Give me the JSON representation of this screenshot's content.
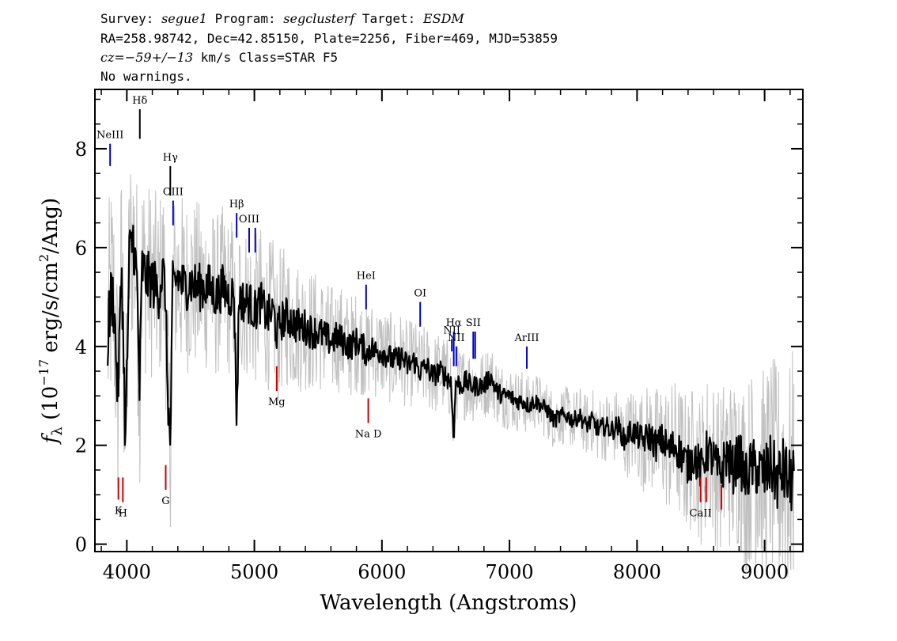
{
  "header": {
    "line1": {
      "survey_label": "Survey: ",
      "survey_value": "segue1",
      "program_label": " Program: ",
      "program_value": "segclusterf",
      "target_label": " Target: ",
      "target_value": "ESDM"
    },
    "line2": "RA=258.98742, Dec=42.85150, Plate=2256, Fiber=469, MJD=53859",
    "line3": {
      "cz_value": "cz=−59+/−13",
      "rest": " km/s Class=STAR F5"
    },
    "line4": "No warnings."
  },
  "chart_data": {
    "type": "line",
    "xlabel": "Wavelength (Angstroms)",
    "ylabel_parts": {
      "prefix": "f",
      "sub": "λ",
      "mid": " (10",
      "exp": "−17",
      "unit": " erg/s/cm",
      "exp2": "2",
      "end": "/Ang)"
    },
    "xlim": [
      3750,
      9300
    ],
    "ylim": [
      -0.15,
      9.2
    ],
    "x_ticks": [
      4000,
      5000,
      6000,
      7000,
      8000,
      9000
    ],
    "x_tick_labels": [
      "4000",
      "5000",
      "6000",
      "7000",
      "8000",
      "9000"
    ],
    "x_minor_step": 200,
    "y_ticks": [
      0,
      2,
      4,
      6,
      8
    ],
    "y_tick_labels": [
      "0",
      "2",
      "4",
      "6",
      "8"
    ],
    "y_minor_step": 0.5,
    "grid": false,
    "series": [
      {
        "role": "flux",
        "color": "#000000",
        "x": [
          3850,
          3880,
          3900,
          3930,
          3960,
          3990,
          4020,
          4050,
          4080,
          4100,
          4120,
          4150,
          4200,
          4250,
          4280,
          4300,
          4320,
          4340,
          4360,
          4400,
          4450,
          4500,
          4550,
          4600,
          4650,
          4700,
          4750,
          4800,
          4840,
          4862,
          4880,
          4920,
          4960,
          5000,
          5050,
          5100,
          5150,
          5180,
          5200,
          5250,
          5300,
          5350,
          5400,
          5450,
          5500,
          5550,
          5600,
          5650,
          5700,
          5750,
          5800,
          5850,
          5890,
          5900,
          5950,
          6000,
          6050,
          6100,
          6150,
          6200,
          6250,
          6300,
          6350,
          6400,
          6450,
          6500,
          6540,
          6563,
          6580,
          6620,
          6660,
          6700,
          6750,
          6800,
          6850,
          6900,
          6950,
          7000,
          7050,
          7100,
          7150,
          7200,
          7250,
          7300,
          7350,
          7400,
          7450,
          7500,
          7550,
          7600,
          7650,
          7700,
          7750,
          7800,
          7850,
          7900,
          7950,
          8000,
          8050,
          8100,
          8150,
          8200,
          8250,
          8300,
          8350,
          8400,
          8450,
          8500,
          8550,
          8600,
          8650,
          8700,
          8750,
          8800,
          8850,
          8900,
          8950,
          9000,
          9050,
          9100,
          9150,
          9200,
          9230
        ],
        "y": [
          4.2,
          5.1,
          4.8,
          3.0,
          5.6,
          2.0,
          5.8,
          6.2,
          5.3,
          3.1,
          5.6,
          5.4,
          5.3,
          5.1,
          5.5,
          5.2,
          3.2,
          1.9,
          5.2,
          5.4,
          5.2,
          5.3,
          5.2,
          5.2,
          5.2,
          5.0,
          5.2,
          5.0,
          5.1,
          2.5,
          5.0,
          4.9,
          4.9,
          4.7,
          4.9,
          4.6,
          4.7,
          4.2,
          4.5,
          4.6,
          4.5,
          4.4,
          4.4,
          4.3,
          4.3,
          4.2,
          4.1,
          4.2,
          4.1,
          4.0,
          4.1,
          4.0,
          3.8,
          4.0,
          3.9,
          3.9,
          3.8,
          3.7,
          3.8,
          3.6,
          3.7,
          3.5,
          3.6,
          3.4,
          3.5,
          3.4,
          3.3,
          2.2,
          3.3,
          3.2,
          3.3,
          3.2,
          3.2,
          3.2,
          3.4,
          3.1,
          3.0,
          3.0,
          2.9,
          2.9,
          2.8,
          2.9,
          2.8,
          2.7,
          2.5,
          2.6,
          2.6,
          2.5,
          2.6,
          2.4,
          2.5,
          2.3,
          2.4,
          2.3,
          2.4,
          2.1,
          2.3,
          2.2,
          2.1,
          2.2,
          2.0,
          2.1,
          1.9,
          2.0,
          1.8,
          1.6,
          1.8,
          1.5,
          1.9,
          1.7,
          1.4,
          1.8,
          1.5,
          1.8,
          1.3,
          1.6,
          1.5,
          1.4,
          1.6,
          1.3,
          1.5,
          1.2,
          1.5
        ]
      }
    ],
    "uncertainty_band": {
      "role": "flux uncertainty",
      "color": "#c0c0c0",
      "widths": [
        2.5,
        2.0,
        1.8,
        1.6,
        1.5,
        1.2,
        1.0,
        0.9,
        0.8,
        0.7,
        0.6,
        0.6,
        0.8,
        1.3,
        1.6,
        2.0,
        2.6
      ]
    },
    "annotations": [
      {
        "label": "NeIII",
        "x": 3869,
        "color": "#0000cc",
        "side": "top",
        "y_tip": 7.65,
        "y_end": 8.1
      },
      {
        "label": "Hδ",
        "x": 4102,
        "color": "#000000",
        "side": "top",
        "y_tip": 8.2,
        "y_end": 8.8
      },
      {
        "label": "Hγ",
        "x": 4341,
        "color": "#000000",
        "side": "top",
        "y_tip": 7.05,
        "y_end": 7.65
      },
      {
        "label": "OIII",
        "x": 4363,
        "color": "#0000cc",
        "side": "top",
        "y_tip": 6.45,
        "y_end": 6.95
      },
      {
        "label": "Hβ",
        "x": 4861,
        "color": "#0000cc",
        "side": "top",
        "y_tip": 6.2,
        "y_end": 6.7
      },
      {
        "label": "OIII",
        "x": 4959,
        "color": "#0000cc",
        "side": "top",
        "y_tip": 5.9,
        "y_end": 6.4
      },
      {
        "label": "",
        "x": 5007,
        "color": "#0000cc",
        "side": "top",
        "y_tip": 5.9,
        "y_end": 6.4
      },
      {
        "label": "HeI",
        "x": 5876,
        "color": "#0000cc",
        "side": "top",
        "y_tip": 4.75,
        "y_end": 5.25
      },
      {
        "label": "OI",
        "x": 6300,
        "color": "#0000cc",
        "side": "top",
        "y_tip": 4.4,
        "y_end": 4.9
      },
      {
        "label": "NII",
        "x": 6548,
        "color": "#0000cc",
        "side": "top",
        "y_tip": 3.9,
        "y_end": 4.15
      },
      {
        "label": "Hα",
        "x": 6563,
        "color": "#0000cc",
        "side": "top",
        "y_tip": 3.6,
        "y_end": 4.3
      },
      {
        "label": "NII",
        "x": 6583,
        "color": "#0000cc",
        "side": "top",
        "y_tip": 3.6,
        "y_end": 4.0
      },
      {
        "label": "SII",
        "x": 6716,
        "color": "#0000cc",
        "side": "top",
        "y_tip": 3.75,
        "y_end": 4.3
      },
      {
        "label": "",
        "x": 6731,
        "color": "#0000cc",
        "side": "top",
        "y_tip": 3.75,
        "y_end": 4.3
      },
      {
        "label": "ArIII",
        "x": 7136,
        "color": "#0000cc",
        "side": "top",
        "y_tip": 3.55,
        "y_end": 4.0
      },
      {
        "label": "K",
        "x": 3934,
        "color": "#cc0000",
        "side": "bottom",
        "y_tip": 1.35,
        "y_end": 0.9
      },
      {
        "label": "H",
        "x": 3969,
        "color": "#cc0000",
        "side": "bottom",
        "y_tip": 1.35,
        "y_end": 0.85
      },
      {
        "label": "G",
        "x": 4305,
        "color": "#cc0000",
        "side": "bottom",
        "y_tip": 1.6,
        "y_end": 1.1
      },
      {
        "label": "Mg",
        "x": 5175,
        "color": "#cc0000",
        "side": "bottom",
        "y_tip": 3.6,
        "y_end": 3.1
      },
      {
        "label": "Na D",
        "x": 5893,
        "color": "#cc0000",
        "side": "bottom",
        "y_tip": 2.95,
        "y_end": 2.45
      },
      {
        "label": "CaII",
        "x": 8498,
        "color": "#cc0000",
        "side": "bottom",
        "y_tip": 1.35,
        "y_end": 0.85
      },
      {
        "label": "",
        "x": 8542,
        "color": "#cc0000",
        "side": "bottom",
        "y_tip": 1.35,
        "y_end": 0.85
      },
      {
        "label": "",
        "x": 8662,
        "color": "#cc0000",
        "side": "bottom",
        "y_tip": 1.2,
        "y_end": 0.7
      }
    ]
  }
}
